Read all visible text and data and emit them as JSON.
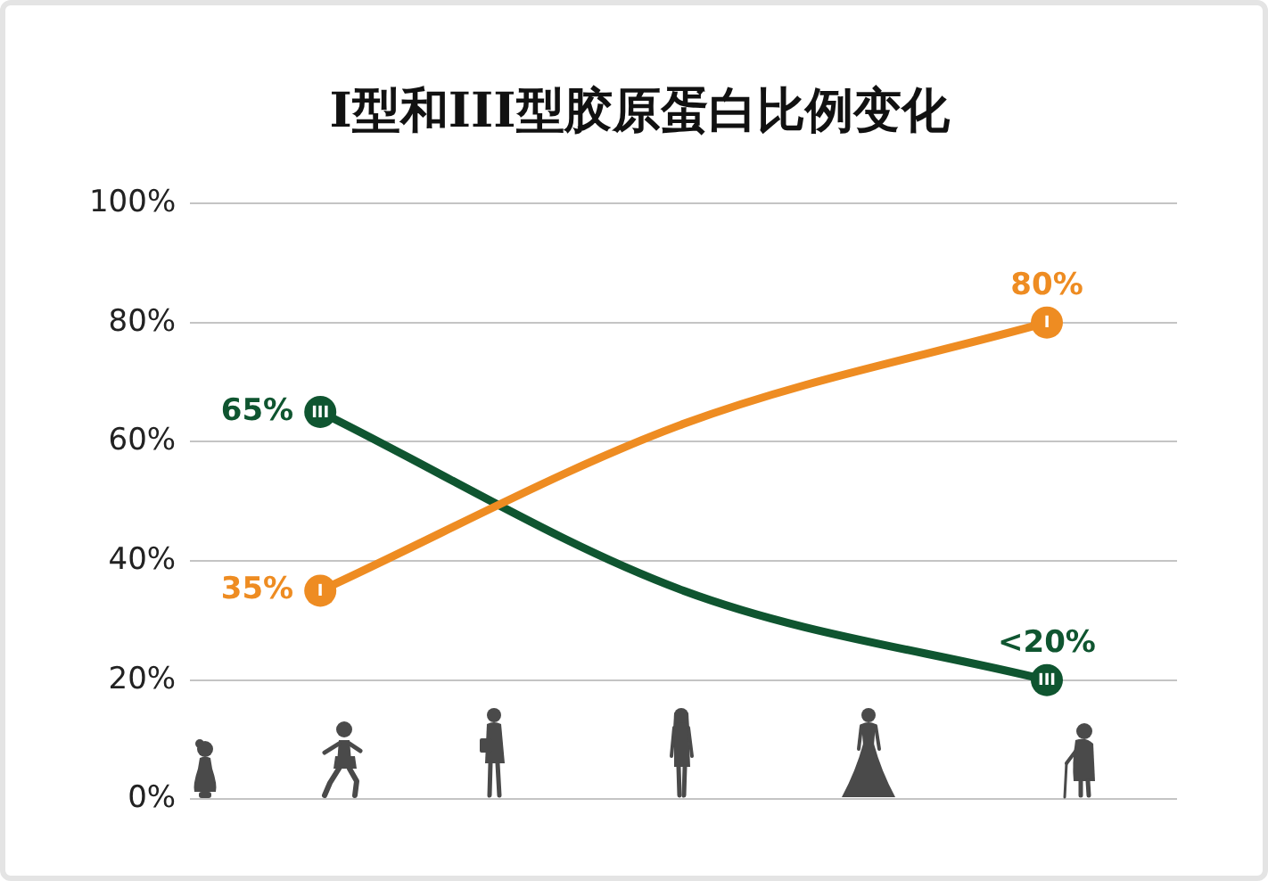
{
  "chart_data": {
    "type": "line",
    "title": "I型和III型胶原蛋白比例变化",
    "categories": [
      null,
      null,
      null
    ],
    "series": [
      {
        "name": "I",
        "color": "#ee8c22",
        "values": [
          35,
          63,
          80
        ],
        "value_labels": [
          "35%",
          null,
          "80%"
        ]
      },
      {
        "name": "III",
        "color": "#0f5530",
        "values": [
          65,
          35,
          20
        ],
        "value_labels": [
          "65%",
          null,
          "<20%"
        ]
      }
    ],
    "ylim": [
      0,
      100
    ],
    "yticks": [
      {
        "value": 0,
        "label": "0%"
      },
      {
        "value": 20,
        "label": "20%"
      },
      {
        "value": 40,
        "label": "40%"
      },
      {
        "value": 60,
        "label": "60%"
      },
      {
        "value": 80,
        "label": "80%"
      },
      {
        "value": 100,
        "label": "100%"
      }
    ],
    "grid": "y",
    "legend": false,
    "marker": "circle",
    "line_style": "solid"
  }
}
